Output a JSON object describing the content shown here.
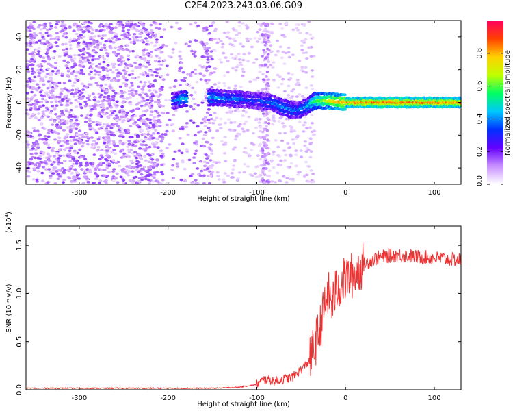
{
  "title": "C2E4.2023.243.03.06.G09",
  "chart_data": [
    {
      "type": "heatmap",
      "xlabel": "Height of straight line (km)",
      "ylabel": "Frequency (Hz)",
      "xlim": [
        -360,
        130
      ],
      "ylim": [
        -50,
        50
      ],
      "xticks": [
        -300,
        -200,
        -100,
        0,
        100
      ],
      "yticks": [
        -40,
        -20,
        0,
        20,
        40
      ],
      "colorbar": {
        "label": "Normalized spectral amplitude",
        "range": [
          0,
          1
        ],
        "ticks": [
          "0.0",
          "0.2",
          "0.4",
          "0.6",
          "0.8"
        ],
        "colormap": [
          "#ffffff",
          "#c890ff",
          "#6400ff",
          "#0030ff",
          "#00c8ff",
          "#00ff60",
          "#c0ff00",
          "#ffd000",
          "#ff4000",
          "#ff0060"
        ]
      },
      "signal_track": {
        "description": "dominant frequency ridge",
        "x": [
          -195,
          -185,
          -150,
          -120,
          -100,
          -85,
          -75,
          -65,
          -55,
          -45,
          -35,
          -20,
          0,
          50,
          130
        ],
        "frequency": [
          1,
          2,
          3,
          2,
          1,
          0,
          -2,
          -4,
          -5,
          -3,
          1,
          1,
          0,
          0,
          0
        ],
        "amplitude": [
          0.3,
          0.45,
          0.4,
          0.35,
          0.3,
          0.35,
          0.4,
          0.4,
          0.35,
          0.4,
          0.55,
          0.7,
          0.8,
          0.85,
          0.8
        ]
      }
    },
    {
      "type": "line",
      "xlabel": "Height of straight line (km)",
      "ylabel": "SNR (10 * v/v)",
      "scale_label": "(x10",
      "scale_exponent": "4",
      "scale_suffix": ")",
      "xlim": [
        -360,
        130
      ],
      "ylim": [
        0,
        1.7
      ],
      "xticks": [
        -300,
        -200,
        -100,
        0,
        100
      ],
      "yticks": [
        "0.0",
        "0.5",
        "1.0",
        "1.5"
      ],
      "color": "#f03030",
      "series": [
        {
          "x": [
            -360,
            -300,
            -250,
            -200,
            -150,
            -120,
            -100,
            -90,
            -80,
            -60,
            -50,
            -40,
            -35,
            -30,
            -25,
            -20,
            -15,
            -10,
            -5,
            0,
            10,
            20,
            30,
            40,
            60,
            80,
            100,
            120,
            130
          ],
          "y": [
            0.01,
            0.01,
            0.01,
            0.01,
            0.01,
            0.02,
            0.05,
            0.1,
            0.08,
            0.12,
            0.2,
            0.3,
            0.45,
            0.6,
            0.8,
            1.0,
            0.9,
            1.05,
            1.1,
            1.15,
            1.2,
            1.3,
            1.35,
            1.38,
            1.4,
            1.38,
            1.37,
            1.35,
            1.35
          ]
        }
      ]
    }
  ]
}
